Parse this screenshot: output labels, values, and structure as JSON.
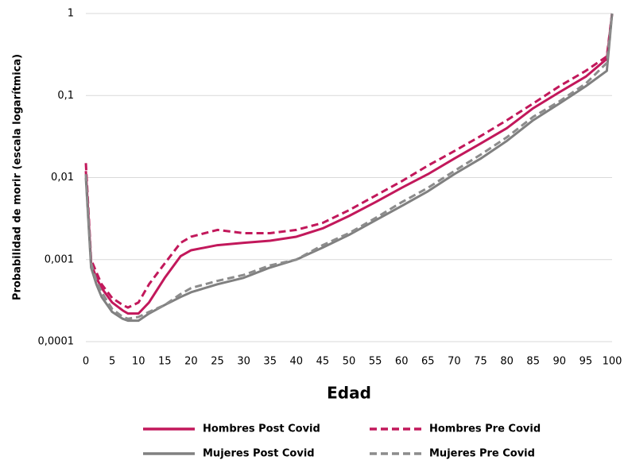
{
  "chart_data": {
    "type": "line",
    "x_label": "Edad",
    "y_label": "Probabilidad de morir (escala logarítmica)",
    "log_scale_y": true,
    "grid": true,
    "legend": "bottom",
    "xlim": [
      0,
      100
    ],
    "xticks": [
      0,
      5,
      10,
      15,
      20,
      25,
      30,
      35,
      40,
      45,
      50,
      55,
      60,
      65,
      70,
      75,
      80,
      85,
      90,
      95,
      100
    ],
    "ylim": [
      0.0001,
      1
    ],
    "yticks": [
      {
        "value": 0.0001,
        "label": "0,0001"
      },
      {
        "value": 0.001,
        "label": "0,001"
      },
      {
        "value": 0.01,
        "label": "0,01"
      },
      {
        "value": 0.1,
        "label": "0,1"
      },
      1
    ],
    "x": [
      0,
      1,
      2,
      3,
      5,
      7,
      8,
      10,
      12,
      15,
      18,
      20,
      25,
      30,
      35,
      40,
      45,
      50,
      55,
      60,
      65,
      70,
      75,
      80,
      85,
      90,
      95,
      99,
      100
    ],
    "series": [
      {
        "name": "Hombres Post Covid",
        "color": "#c2185b",
        "style": "solid",
        "values": [
          0.012,
          0.0009,
          0.0006,
          0.00045,
          0.0003,
          0.00024,
          0.00022,
          0.00022,
          0.0003,
          0.0006,
          0.0011,
          0.0013,
          0.0015,
          0.0016,
          0.0017,
          0.0019,
          0.0024,
          0.0034,
          0.005,
          0.0075,
          0.011,
          0.017,
          0.026,
          0.04,
          0.07,
          0.11,
          0.17,
          0.28,
          1
        ]
      },
      {
        "name": "Hombres Pre Covid",
        "color": "#c2185b",
        "style": "dashed",
        "values": [
          0.015,
          0.001,
          0.0007,
          0.0005,
          0.00034,
          0.00028,
          0.00026,
          0.0003,
          0.0005,
          0.0009,
          0.0016,
          0.0019,
          0.0023,
          0.0021,
          0.0021,
          0.0023,
          0.0028,
          0.004,
          0.006,
          0.009,
          0.014,
          0.021,
          0.032,
          0.05,
          0.08,
          0.13,
          0.2,
          0.3,
          1
        ]
      },
      {
        "name": "Mujeres Post Covid",
        "color": "#808080",
        "style": "solid",
        "values": [
          0.01,
          0.0008,
          0.0005,
          0.00035,
          0.00023,
          0.00019,
          0.00018,
          0.00018,
          0.00022,
          0.00028,
          0.00035,
          0.0004,
          0.0005,
          0.0006,
          0.0008,
          0.001,
          0.0014,
          0.002,
          0.003,
          0.0045,
          0.0068,
          0.011,
          0.017,
          0.028,
          0.05,
          0.08,
          0.13,
          0.2,
          1
        ]
      },
      {
        "name": "Mujeres Pre Covid",
        "color": "#8c8c8c",
        "style": "dashed",
        "values": [
          0.011,
          0.0009,
          0.00055,
          0.0004,
          0.00025,
          0.0002,
          0.00019,
          0.0002,
          0.00023,
          0.00028,
          0.00038,
          0.00045,
          0.00055,
          0.00065,
          0.00085,
          0.001,
          0.0015,
          0.0021,
          0.0032,
          0.005,
          0.0075,
          0.012,
          0.019,
          0.031,
          0.055,
          0.085,
          0.14,
          0.25,
          1
        ]
      }
    ]
  }
}
